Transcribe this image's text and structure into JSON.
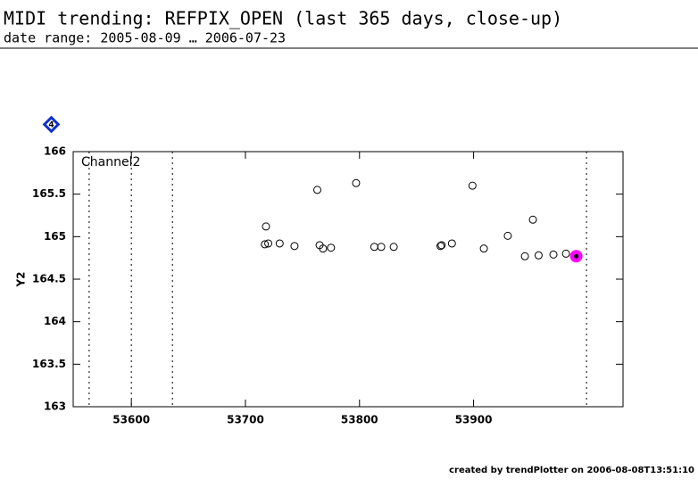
{
  "chart_data": {
    "type": "scatter",
    "title": "MIDI trending: REFPIX_OPEN (last 365 days, close-up)",
    "subtitle": "date range: 2005-08-09 … 2006-07-23",
    "badge": "4",
    "annotation": "Channel2",
    "y_label": "Y2",
    "footer": "created by trendPlotter on 2006-08-08T13:51:10",
    "x": [
      53718,
      53717,
      53720,
      53730,
      53743,
      53763,
      53765,
      53768,
      53775,
      53797,
      53813,
      53819,
      53830,
      53871,
      53872,
      53881,
      53899,
      53909,
      53930,
      53945,
      53952,
      53957,
      53970,
      53981,
      53990
    ],
    "values": [
      165.12,
      164.91,
      164.92,
      164.92,
      164.89,
      165.55,
      164.9,
      164.86,
      164.87,
      165.63,
      164.88,
      164.88,
      164.88,
      164.89,
      164.9,
      164.92,
      165.6,
      164.86,
      165.01,
      164.77,
      165.2,
      164.78,
      164.79,
      164.8,
      164.77
    ],
    "color": "#000000",
    "highlight": {
      "index": 24,
      "color": "#ff00ff"
    },
    "vlines": [
      53563,
      53600,
      53636,
      53999
    ],
    "xlim": [
      53549,
      54031
    ],
    "xticks": [
      53600,
      53700,
      53800,
      53900
    ],
    "ylim": [
      163,
      166
    ],
    "yticks": [
      163,
      163.5,
      164,
      164.5,
      165,
      165.5,
      166
    ]
  }
}
